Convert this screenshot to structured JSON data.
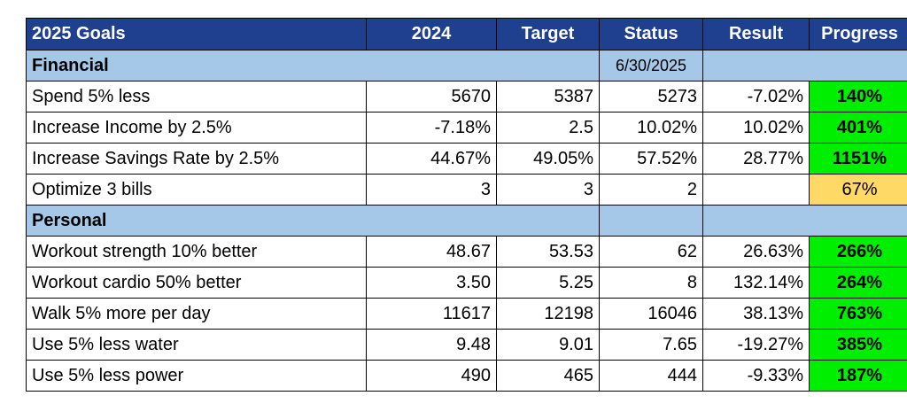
{
  "header": [
    "2025 Goals",
    "2024",
    "Target",
    "Status",
    "Result",
    "Progress"
  ],
  "sections": [
    {
      "label": "Financial",
      "date": "6/30/2025",
      "rows": [
        {
          "goal": "Spend 5% less",
          "y2024": "5670",
          "target": "5387",
          "status": "5273",
          "result": "-7.02%",
          "progress": "140%",
          "progress_level": "met"
        },
        {
          "goal": "Increase Income by 2.5%",
          "y2024": "-7.18%",
          "target": "2.5",
          "status": "10.02%",
          "result": "10.02%",
          "progress": "401%",
          "progress_level": "met"
        },
        {
          "goal": "Increase Savings Rate by 2.5%",
          "y2024": "44.67%",
          "target": "49.05%",
          "status": "57.52%",
          "result": "28.77%",
          "progress": "1151%",
          "progress_level": "met"
        },
        {
          "goal": "Optimize 3 bills",
          "y2024": "3",
          "target": "3",
          "status": "2",
          "result": "",
          "progress": "67%",
          "progress_level": "partial"
        }
      ]
    },
    {
      "label": "Personal",
      "date": "",
      "rows": [
        {
          "goal": "Workout strength 10% better",
          "y2024": "48.67",
          "target": "53.53",
          "status": "62",
          "result": "26.63%",
          "progress": "266%",
          "progress_level": "met"
        },
        {
          "goal": "Workout cardio 50% better",
          "y2024": "3.50",
          "target": "5.25",
          "status": "8",
          "result": "132.14%",
          "progress": "264%",
          "progress_level": "met"
        },
        {
          "goal": "Walk 5% more per day",
          "y2024": "11617",
          "target": "12198",
          "status": "16046",
          "result": "38.13%",
          "progress": "763%",
          "progress_level": "met"
        },
        {
          "goal": "Use 5% less water",
          "y2024": "9.48",
          "target": "9.01",
          "status": "7.65",
          "result": "-19.27%",
          "progress": "385%",
          "progress_level": "met"
        },
        {
          "goal": "Use 5% less power",
          "y2024": "490",
          "target": "465",
          "status": "444",
          "result": "-9.33%",
          "progress": "187%",
          "progress_level": "met"
        }
      ]
    }
  ],
  "colors": {
    "header_bg": "#1f3f8f",
    "section_bg": "#a5c8e8",
    "met": "#00ee00",
    "partial": "#ffd966"
  }
}
